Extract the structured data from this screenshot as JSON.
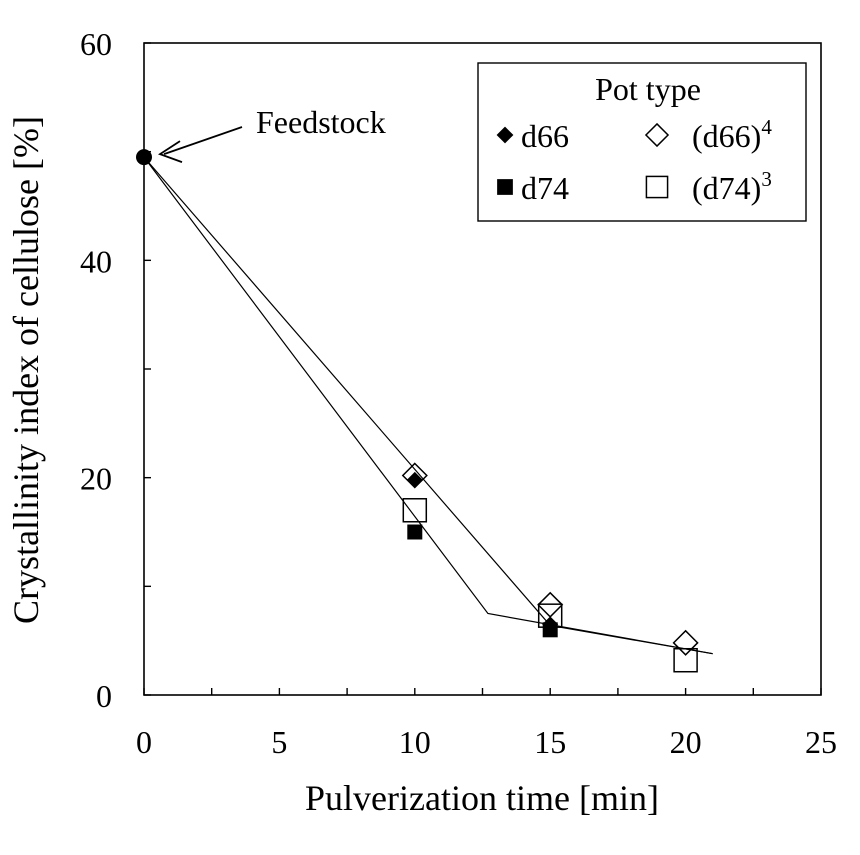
{
  "chart_data": {
    "type": "scatter",
    "xlabel": "Pulverization time [min]",
    "ylabel": "Crystallinity index of cellulose [%]",
    "xlim": [
      0,
      25
    ],
    "ylim": [
      0,
      60
    ],
    "x_ticks": [
      "0",
      "5",
      "10",
      "15",
      "20",
      "25"
    ],
    "y_ticks": [
      "0",
      "20",
      "40",
      "60"
    ],
    "x_tick_values": [
      0,
      5,
      10,
      15,
      20,
      25
    ],
    "y_tick_values": [
      0,
      20,
      40,
      60
    ],
    "grid": false,
    "legend": {
      "title": "Pot type",
      "placement": "top-right",
      "entries": [
        {
          "base": "d66",
          "sup": "",
          "marker": "diamond-filled"
        },
        {
          "base": "(d66)",
          "sup": "4",
          "marker": "diamond-open"
        },
        {
          "base": "d74",
          "sup": "",
          "marker": "square-filled"
        },
        {
          "base": "(d74)",
          "sup": "3",
          "marker": "square-open"
        }
      ]
    },
    "series": [
      {
        "marker": "diamond-filled",
        "x": [
          10,
          15
        ],
        "y": [
          19.8,
          6.5
        ]
      },
      {
        "marker": "diamond-open",
        "x": [
          10,
          15,
          20
        ],
        "y": [
          20.2,
          8.3,
          4.8
        ]
      },
      {
        "marker": "square-filled",
        "x": [
          10,
          15
        ],
        "y": [
          15.0,
          6.0
        ]
      },
      {
        "marker": "square-open",
        "x": [
          10,
          15,
          20
        ],
        "y": [
          17.0,
          7.3,
          3.2
        ]
      }
    ],
    "feedstock_point": {
      "x": 0,
      "y": 49.5,
      "marker": "circle-filled"
    },
    "trend_lines": [
      {
        "x": [
          0,
          15,
          21
        ],
        "y": [
          49.5,
          6.4,
          3.8
        ]
      },
      {
        "x": [
          0,
          12.7,
          21
        ],
        "y": [
          49.5,
          7.5,
          3.8
        ]
      }
    ],
    "annotations": [
      {
        "text": "Feedstock",
        "points_to": {
          "x": 0,
          "y": 49.5
        }
      }
    ]
  }
}
